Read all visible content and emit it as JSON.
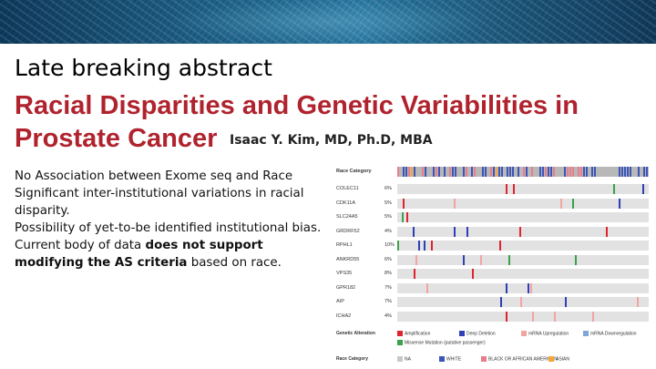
{
  "header": {
    "section": "Late breaking abstract",
    "title_line1": "Racial Disparities and Genetic Variabilities in",
    "title_line2": "Prostate Cancer",
    "author": "Isaac Y. Kim, MD, Ph.D, MBA"
  },
  "bullets": {
    "b1": "No Association between Exome seq and Race",
    "b2": "Significant inter-institutional variations in racial disparity.",
    "b3": "Possibility of yet-to-be identified institutional bias.",
    "b4_pre": "Current body of data ",
    "b4_bold1": "does not support modifying the AS criteria",
    "b4_post": " based on race."
  },
  "figure": {
    "race_title": "Race Category",
    "genes": [
      {
        "name": "COLEC11",
        "pct": "6%"
      },
      {
        "name": "CDK11A",
        "pct": "5%"
      },
      {
        "name": "SLC24A5",
        "pct": "5%"
      },
      {
        "name": "GRDRF52",
        "pct": "4%"
      },
      {
        "name": "RPHL1",
        "pct": "10%"
      },
      {
        "name": "ANKRD55",
        "pct": "6%"
      },
      {
        "name": "VPS35",
        "pct": "8%"
      },
      {
        "name": "GPR182",
        "pct": "7%"
      },
      {
        "name": "AIP",
        "pct": "7%"
      },
      {
        "name": "ICHA2",
        "pct": "4%"
      }
    ],
    "genetic_alteration_label": "Genetic Alteration",
    "alteration_legend": [
      "Amplification",
      "Deep Deletion",
      "mRNA Upregulation",
      "mRNA Downregulation"
    ],
    "missense_legend": "Missense Mutation (putative passenger)",
    "race_legend_title": "Race Category",
    "race_legend": [
      "NA",
      "WHITE",
      "BLACK OR AFRICAN AMERICAN",
      "ASIAN"
    ],
    "colors": {
      "amplification": "#e0232e",
      "deep_deletion": "#2f3fb5",
      "mrna_up": "#f4a3a3",
      "mrna_down": "#7ea6d8",
      "missense": "#3aa24a",
      "race_na": "#c8c8c8",
      "race_white": "#3b55b8",
      "race_black": "#e87e8c",
      "race_asian": "#f5a63a"
    }
  }
}
